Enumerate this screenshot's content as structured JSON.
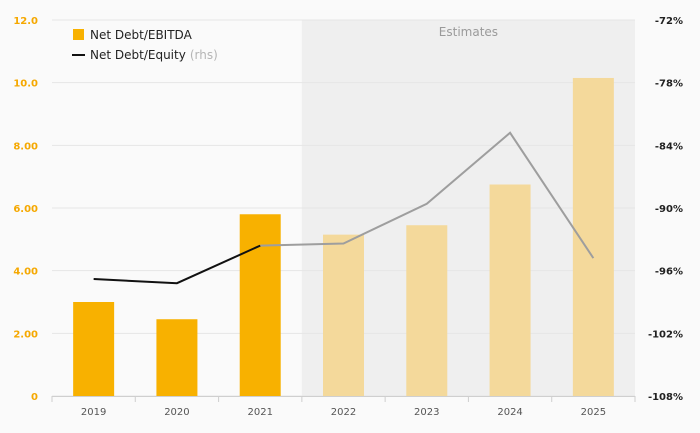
{
  "chart_data": {
    "type": "bar",
    "categories": [
      "2019",
      "2020",
      "2021",
      "2022",
      "2023",
      "2024",
      "2025"
    ],
    "series": [
      {
        "name": "Net Debt/EBITDA",
        "kind": "bar",
        "axis": "left",
        "values": [
          3.0,
          2.45,
          5.8,
          5.15,
          5.45,
          6.75,
          10.15
        ]
      },
      {
        "name": "Net Debt/Equity",
        "kind": "line",
        "axis": "right",
        "values": [
          -96.8,
          -97.2,
          -93.6,
          -93.4,
          -89.6,
          -82.8,
          -94.8
        ]
      }
    ],
    "legend": [
      {
        "label": "Net Debt/EBITDA",
        "suffix": ""
      },
      {
        "label": "Net Debt/Equity",
        "suffix": "(rhs)"
      }
    ],
    "left_axis": {
      "min": 0,
      "max": 12,
      "ticks": [
        "0",
        "2.00",
        "4.00",
        "6.00",
        "8.00",
        "10.0",
        "12.0"
      ]
    },
    "right_axis": {
      "min": -108,
      "max": -72,
      "ticks": [
        "-108%",
        "-102%",
        "-96%",
        "-90%",
        "-84%",
        "-78%",
        "-72%"
      ]
    },
    "estimates": {
      "label": "Estimates",
      "from_category": "2022"
    },
    "legend_position": "top-left",
    "grid": true,
    "colors": {
      "bar_actual": "#f8b100",
      "bar_estimate": "#f4d99b",
      "line_actual": "#111111",
      "line_estimate": "#9e9e9e",
      "estimate_shade": "#efefef",
      "grid": "#e6e6e6",
      "left_axis_text": "#f5a800"
    }
  }
}
